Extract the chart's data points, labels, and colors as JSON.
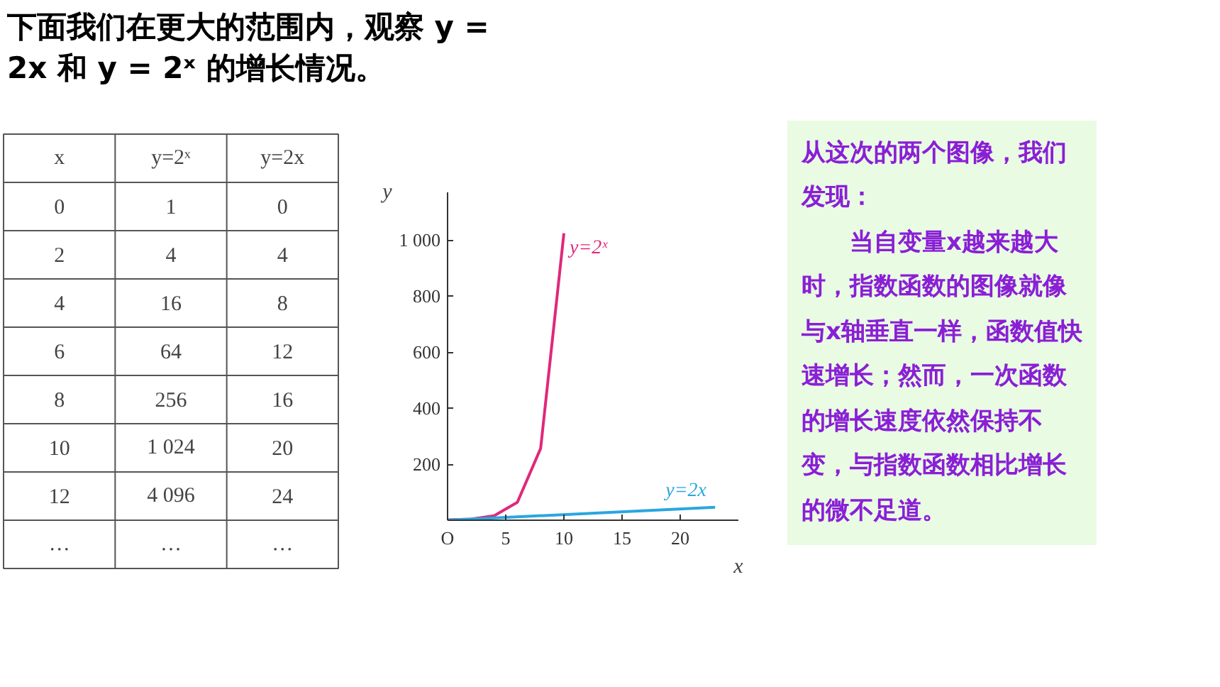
{
  "chart_data": {
    "type": "line",
    "title": "下面我们在更大的范围内，观察 y = 2x 和 y = 2ˣ 的增长情况。",
    "xlabel": "x",
    "ylabel": "y",
    "xlim": [
      0,
      25
    ],
    "ylim": [
      0,
      1170
    ],
    "xticks": [
      {
        "value": 0,
        "label": "O"
      },
      5,
      10,
      15,
      20
    ],
    "yticks": [
      200,
      400,
      600,
      800,
      {
        "value": 1000,
        "label": "1 000"
      }
    ],
    "grid": false,
    "marker": "none",
    "line_style": "solid",
    "series": [
      {
        "name": "y=2ˣ",
        "color": "#e0287a",
        "x": [
          0,
          2,
          4,
          6,
          8,
          10
        ],
        "values": [
          1,
          4,
          16,
          64,
          256,
          1024
        ]
      },
      {
        "name": "y=2x",
        "color": "#2aa6e0",
        "x": [
          0,
          23
        ],
        "values": [
          0,
          46
        ]
      }
    ],
    "annotations": [
      "从这次的两个图像，我们发现：",
      "当自变量x越来越大时，指数函数的图像就像与x轴垂直一样，函数值快速增长；然而，一次函数的增长速度依然保持不变，与指数函数相比增长的微不足道。",
      "x  y=2ˣ  y=2x",
      "0  1  0",
      "2  4  4",
      "4  16  8",
      "6  64  12",
      "8  256  16",
      "10  1 024  20",
      "12  4 096  24",
      "…  …  …"
    ]
  }
}
